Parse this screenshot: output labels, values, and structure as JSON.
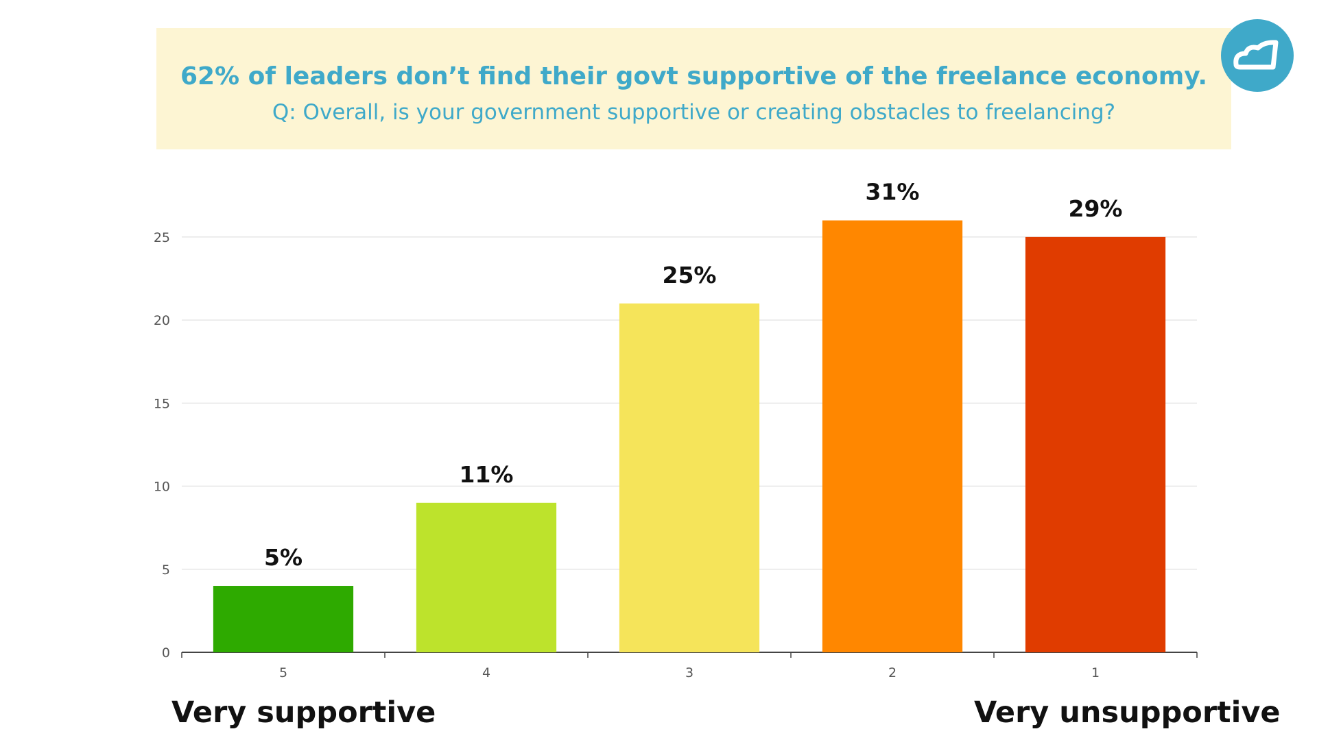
{
  "header": {
    "headline": "62% of leaders don’t find their govt supportive of the freelance economy.",
    "question": "Q: Overall, is your government supportive or creating obstacles to freelancing?"
  },
  "logo": {
    "icon": "cloud-logo-icon",
    "color": "#3fa9c9"
  },
  "chart_data": {
    "type": "bar",
    "categories": [
      "5",
      "4",
      "3",
      "2",
      "1"
    ],
    "values": [
      4,
      9,
      21,
      26,
      25
    ],
    "data_labels": [
      "5%",
      "11%",
      "25%",
      "31%",
      "29%"
    ],
    "colors": [
      "#2eaa00",
      "#bde32c",
      "#f5e45a",
      "#ff8700",
      "#e03c00"
    ],
    "yticks": [
      0,
      5,
      10,
      15,
      20,
      25
    ],
    "ylim": [
      0,
      27
    ],
    "grid": true
  },
  "scale_labels": {
    "left": "Very supportive",
    "right": "Very unsupportive"
  }
}
